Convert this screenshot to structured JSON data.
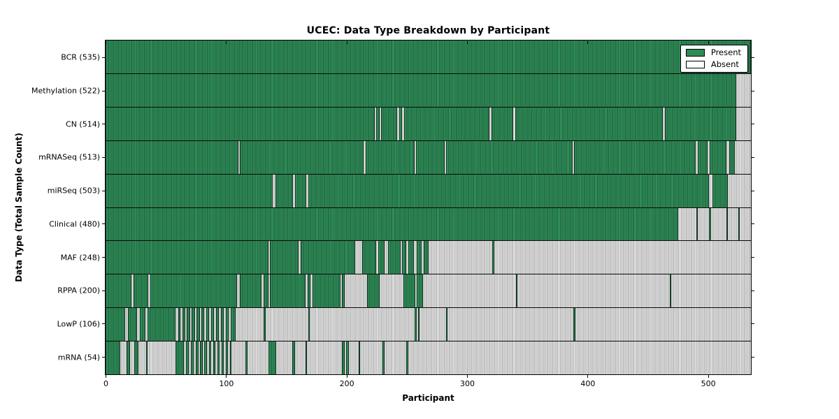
{
  "title": "UCEC: Data Type Breakdown by Participant",
  "xlabel": "Participant",
  "ylabel": "Data Type (Total Sample Count)",
  "legend": {
    "position": "upper right",
    "present_label": "Present",
    "absent_label": "Absent"
  },
  "colors": {
    "present": "#2e8b57",
    "present_edge": "#1d5737",
    "absent": "#dadada",
    "absent_edge": "#a8a8a8",
    "frame": "#000000"
  },
  "chart_data": {
    "type": "heatmap",
    "title": "UCEC: Data Type Breakdown by Participant",
    "xlabel": "Participant",
    "ylabel": "Data Type (Total Sample Count)",
    "x_range": [
      0,
      535
    ],
    "x_ticks": [
      0,
      100,
      200,
      300,
      400,
      500
    ],
    "grid": false,
    "legend_entries": [
      "Present",
      "Absent"
    ],
    "rows": [
      {
        "name": "BCR",
        "label": "BCR (535)",
        "count": 535,
        "present_segments": [
          [
            0,
            535
          ]
        ]
      },
      {
        "name": "Methylation",
        "label": "Methylation (522)",
        "count": 522,
        "present_segments": [
          [
            0,
            523
          ]
        ]
      },
      {
        "name": "CN",
        "label": "CN (514)",
        "count": 514,
        "present_segments": [
          [
            0,
            223
          ],
          [
            224.5,
            227
          ],
          [
            228.5,
            242
          ],
          [
            243.5,
            246
          ],
          [
            247.5,
            318.5
          ],
          [
            320,
            338
          ],
          [
            339.5,
            462
          ],
          [
            463.5,
            523
          ]
        ]
      },
      {
        "name": "mRNASeq",
        "label": "mRNASeq (513)",
        "count": 513,
        "present_segments": [
          [
            0,
            110
          ],
          [
            111.5,
            214
          ],
          [
            215.5,
            256
          ],
          [
            257.5,
            281
          ],
          [
            282.5,
            387
          ],
          [
            388.5,
            489
          ],
          [
            491,
            499
          ],
          [
            501,
            515
          ],
          [
            517,
            521.5
          ]
        ]
      },
      {
        "name": "miRSeq",
        "label": "miRSeq (503)",
        "count": 503,
        "present_segments": [
          [
            0,
            138.5
          ],
          [
            141,
            155.5
          ],
          [
            157,
            166.5
          ],
          [
            168,
            500
          ],
          [
            503,
            516
          ]
        ]
      },
      {
        "name": "Clinical",
        "label": "Clinical (480)",
        "count": 480,
        "present_segments": [
          [
            0,
            475
          ],
          [
            489.5,
            491
          ],
          [
            500.5,
            502
          ],
          [
            514.5,
            516
          ],
          [
            524.5,
            526
          ]
        ]
      },
      {
        "name": "MAF",
        "label": "MAF (248)",
        "count": 248,
        "present_segments": [
          [
            0,
            135
          ],
          [
            136.5,
            160
          ],
          [
            161.5,
            207
          ],
          [
            213,
            224.5
          ],
          [
            226,
            231
          ],
          [
            234,
            244.5
          ],
          [
            246,
            249.5
          ],
          [
            251,
            255.5
          ],
          [
            258,
            262
          ],
          [
            263.5,
            268
          ],
          [
            320.5,
            322
          ]
        ]
      },
      {
        "name": "RPPA",
        "label": "RPPA (200)",
        "count": 200,
        "present_segments": [
          [
            0,
            21.5
          ],
          [
            23,
            35.5
          ],
          [
            37,
            109
          ],
          [
            111.5,
            129.5
          ],
          [
            131,
            135
          ],
          [
            136.5,
            166
          ],
          [
            167.5,
            170
          ],
          [
            171.5,
            194.5
          ],
          [
            196,
            198.5
          ],
          [
            217,
            227
          ],
          [
            247,
            256.5
          ],
          [
            258,
            263
          ],
          [
            340,
            341.5
          ],
          [
            467.5,
            469
          ]
        ]
      },
      {
        "name": "LowP",
        "label": "LowP (106)",
        "count": 106,
        "present_segments": [
          [
            0,
            16
          ],
          [
            18.5,
            26
          ],
          [
            28.5,
            33
          ],
          [
            35,
            58
          ],
          [
            60,
            62
          ],
          [
            63.5,
            66
          ],
          [
            67.5,
            70
          ],
          [
            71.5,
            74
          ],
          [
            75.5,
            78
          ],
          [
            79.5,
            82
          ],
          [
            83.5,
            86
          ],
          [
            87.5,
            90
          ],
          [
            91.5,
            94
          ],
          [
            95.5,
            98
          ],
          [
            99.5,
            102
          ],
          [
            103.5,
            108
          ],
          [
            131,
            132.5
          ],
          [
            168,
            169.5
          ],
          [
            256,
            258
          ],
          [
            259,
            260
          ],
          [
            282,
            283.5
          ],
          [
            388,
            389.5
          ]
        ]
      },
      {
        "name": "mRNA",
        "label": "mRNA (54)",
        "count": 54,
        "present_segments": [
          [
            0,
            12
          ],
          [
            17.5,
            20
          ],
          [
            23.5,
            27
          ],
          [
            33.5,
            35
          ],
          [
            58,
            65
          ],
          [
            66.5,
            69
          ],
          [
            71,
            73
          ],
          [
            75,
            77
          ],
          [
            78.5,
            80.5
          ],
          [
            82,
            84
          ],
          [
            85.5,
            87.5
          ],
          [
            89,
            91
          ],
          [
            92.5,
            94.5
          ],
          [
            96,
            98
          ],
          [
            99.5,
            101.5
          ],
          [
            103,
            104.5
          ],
          [
            116,
            117.5
          ],
          [
            135,
            141.5
          ],
          [
            155,
            157
          ],
          [
            165.5,
            167
          ],
          [
            196,
            198
          ],
          [
            199.5,
            201.5
          ],
          [
            210,
            211
          ],
          [
            229.5,
            231
          ],
          [
            249.5,
            251
          ]
        ]
      }
    ]
  }
}
